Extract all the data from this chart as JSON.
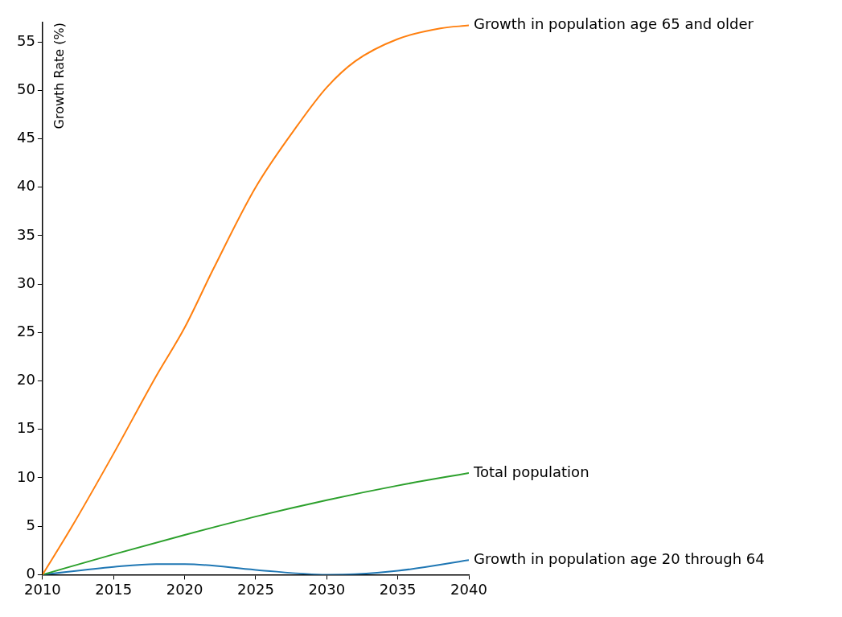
{
  "chart_data": {
    "type": "line",
    "ylabel": "Growth Rate (%)",
    "legend": false,
    "grid": false,
    "marker": "none",
    "line_style": "solid",
    "xlim": [
      2010,
      2040
    ],
    "xticks": [
      2010,
      2015,
      2020,
      2025,
      2030,
      2035,
      2040
    ],
    "ylim": [
      0,
      57
    ],
    "yticks": [
      0,
      5,
      10,
      15,
      20,
      25,
      30,
      35,
      40,
      45,
      50,
      55
    ],
    "series": [
      {
        "name": "Growth in population age 65 and older",
        "color": "#ff7f0e",
        "x": [
          2010,
          2012,
          2015,
          2018,
          2020,
          2022,
          2025,
          2028,
          2030,
          2032,
          2035,
          2038,
          2040
        ],
        "values": [
          0,
          4.8,
          12.5,
          20.5,
          25.5,
          31.5,
          40,
          46.5,
          50.3,
          53,
          55.3,
          56.4,
          56.7
        ]
      },
      {
        "name": "Total population",
        "color": "#2ca02c",
        "x": [
          2010,
          2015,
          2020,
          2025,
          2030,
          2035,
          2040
        ],
        "values": [
          0,
          2.1,
          4.1,
          6,
          7.7,
          9.2,
          10.5
        ]
      },
      {
        "name": "Growth in population age 20 through 64",
        "color": "#1f77b4",
        "x": [
          2010,
          2015,
          2018,
          2020,
          2025,
          2030,
          2032,
          2035,
          2040
        ],
        "values": [
          0,
          0.8,
          1.1,
          1.1,
          0.5,
          0,
          0.05,
          0.4,
          1.5
        ]
      }
    ]
  }
}
